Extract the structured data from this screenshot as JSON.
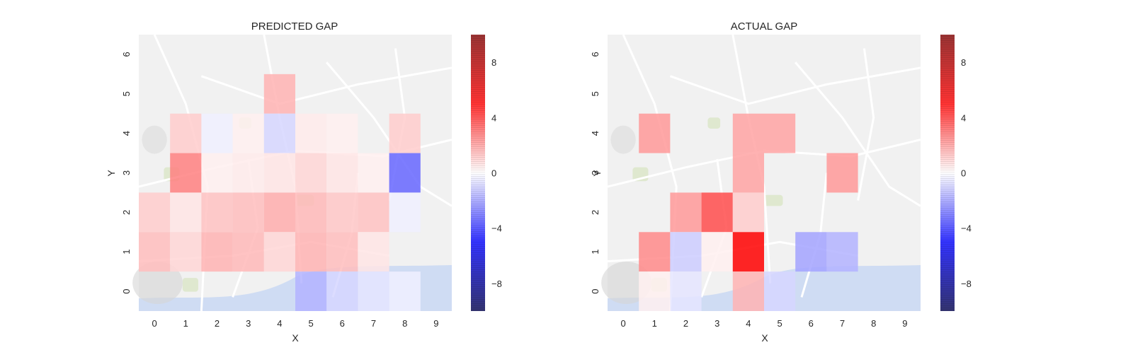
{
  "chart_data": [
    {
      "type": "heatmap",
      "title": "PREDICTED GAP",
      "xlabel": "X",
      "ylabel": "Y",
      "x_ticks": [
        "0",
        "1",
        "2",
        "3",
        "4",
        "5",
        "6",
        "7",
        "8",
        "9"
      ],
      "y_ticks": [
        "0",
        "1",
        "2",
        "3",
        "4",
        "5",
        "6"
      ],
      "background": "Porto street map (light, desaturated)",
      "colorbar": {
        "colormap": "seismic",
        "vmin": -10,
        "vmax": 10,
        "ticks": [
          8,
          4,
          0,
          -4,
          -8
        ],
        "tick_labels": [
          "8",
          "4",
          "0",
          "−4",
          "−8"
        ]
      },
      "cells": [
        {
          "x": 4,
          "y": 5,
          "value": 1.5
        },
        {
          "x": 1,
          "y": 4,
          "value": 1.0
        },
        {
          "x": 2,
          "y": 4,
          "value": -0.3
        },
        {
          "x": 3,
          "y": 4,
          "value": 0.3
        },
        {
          "x": 4,
          "y": 4,
          "value": -0.8
        },
        {
          "x": 5,
          "y": 4,
          "value": 0.4
        },
        {
          "x": 6,
          "y": 4,
          "value": 0.3
        },
        {
          "x": 8,
          "y": 4,
          "value": 1.0
        },
        {
          "x": 1,
          "y": 3,
          "value": 2.5
        },
        {
          "x": 2,
          "y": 3,
          "value": 0.3
        },
        {
          "x": 3,
          "y": 3,
          "value": 0.4
        },
        {
          "x": 4,
          "y": 3,
          "value": 0.5
        },
        {
          "x": 5,
          "y": 3,
          "value": 0.8
        },
        {
          "x": 6,
          "y": 3,
          "value": 0.5
        },
        {
          "x": 7,
          "y": 3,
          "value": 0.3
        },
        {
          "x": 8,
          "y": 3,
          "value": -3.0
        },
        {
          "x": 0,
          "y": 2,
          "value": 1.0
        },
        {
          "x": 1,
          "y": 2,
          "value": 0.5
        },
        {
          "x": 2,
          "y": 2,
          "value": 1.2
        },
        {
          "x": 3,
          "y": 2,
          "value": 1.3
        },
        {
          "x": 4,
          "y": 2,
          "value": 1.6
        },
        {
          "x": 5,
          "y": 2,
          "value": 1.4
        },
        {
          "x": 6,
          "y": 2,
          "value": 1.1
        },
        {
          "x": 7,
          "y": 2,
          "value": 1.2
        },
        {
          "x": 8,
          "y": 2,
          "value": -0.3
        },
        {
          "x": 0,
          "y": 1,
          "value": 1.3
        },
        {
          "x": 1,
          "y": 1,
          "value": 0.8
        },
        {
          "x": 2,
          "y": 1,
          "value": 1.5
        },
        {
          "x": 3,
          "y": 1,
          "value": 1.4
        },
        {
          "x": 4,
          "y": 1,
          "value": 0.8
        },
        {
          "x": 5,
          "y": 1,
          "value": 1.5
        },
        {
          "x": 6,
          "y": 1,
          "value": 1.3
        },
        {
          "x": 7,
          "y": 1,
          "value": 0.5
        },
        {
          "x": 5,
          "y": 0,
          "value": -1.5
        },
        {
          "x": 6,
          "y": 0,
          "value": -0.8
        },
        {
          "x": 7,
          "y": 0,
          "value": -0.5
        },
        {
          "x": 8,
          "y": 0,
          "value": -0.3
        }
      ]
    },
    {
      "type": "heatmap",
      "title": "ACTUAL GAP",
      "xlabel": "X",
      "ylabel": "Y",
      "x_ticks": [
        "0",
        "1",
        "2",
        "3",
        "4",
        "5",
        "6",
        "7",
        "8",
        "9"
      ],
      "y_ticks": [
        "0",
        "1",
        "2",
        "3",
        "4",
        "5",
        "6"
      ],
      "background": "Porto street map (light, desaturated)",
      "colorbar": {
        "colormap": "seismic",
        "vmin": -10,
        "vmax": 10,
        "ticks": [
          8,
          4,
          0,
          -4,
          -8
        ],
        "tick_labels": [
          "8",
          "4",
          "0",
          "−4",
          "−8"
        ]
      },
      "cells": [
        {
          "x": 1,
          "y": 4,
          "value": 2.0
        },
        {
          "x": 4,
          "y": 4,
          "value": 1.8
        },
        {
          "x": 5,
          "y": 4,
          "value": 1.8
        },
        {
          "x": 4,
          "y": 3,
          "value": 1.8
        },
        {
          "x": 7,
          "y": 3,
          "value": 2.0
        },
        {
          "x": 2,
          "y": 2,
          "value": 2.0
        },
        {
          "x": 3,
          "y": 2,
          "value": 3.5
        },
        {
          "x": 4,
          "y": 2,
          "value": 1.0
        },
        {
          "x": 1,
          "y": 1,
          "value": 2.3
        },
        {
          "x": 2,
          "y": 1,
          "value": -1.0
        },
        {
          "x": 3,
          "y": 1,
          "value": 0.3
        },
        {
          "x": 4,
          "y": 1,
          "value": 5.0
        },
        {
          "x": 6,
          "y": 1,
          "value": -1.8
        },
        {
          "x": 7,
          "y": 1,
          "value": -1.5
        },
        {
          "x": 1,
          "y": 0,
          "value": 0.3
        },
        {
          "x": 2,
          "y": 0,
          "value": -0.5
        },
        {
          "x": 4,
          "y": 0,
          "value": 1.5
        },
        {
          "x": 5,
          "y": 0,
          "value": -0.8
        }
      ]
    }
  ]
}
